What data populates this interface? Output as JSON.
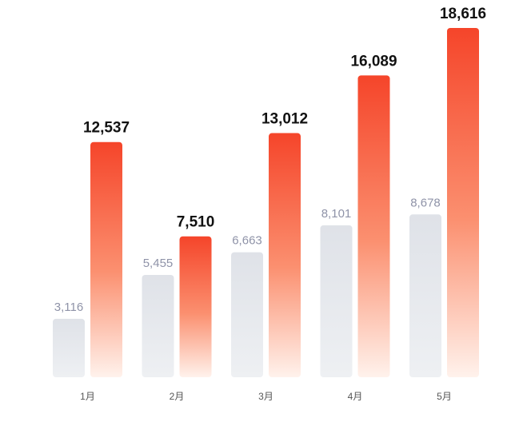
{
  "chart_data": {
    "type": "bar",
    "categories": [
      "1月",
      "2月",
      "3月",
      "4月",
      "5月"
    ],
    "series": [
      {
        "values": [
          3116,
          5455,
          6663,
          8101,
          8678
        ],
        "labels": [
          "3,116",
          "5,455",
          "6,663",
          "8,101",
          "8,678"
        ],
        "color": "#dfe2e8"
      },
      {
        "values": [
          12537,
          7510,
          13012,
          16089,
          18616
        ],
        "labels": [
          "12,537",
          "7,510",
          "13,012",
          "16,089",
          "18,616"
        ],
        "color": "#f5452a"
      }
    ],
    "grid": false,
    "legend": "none",
    "ylim": [
      0,
      20000
    ]
  }
}
